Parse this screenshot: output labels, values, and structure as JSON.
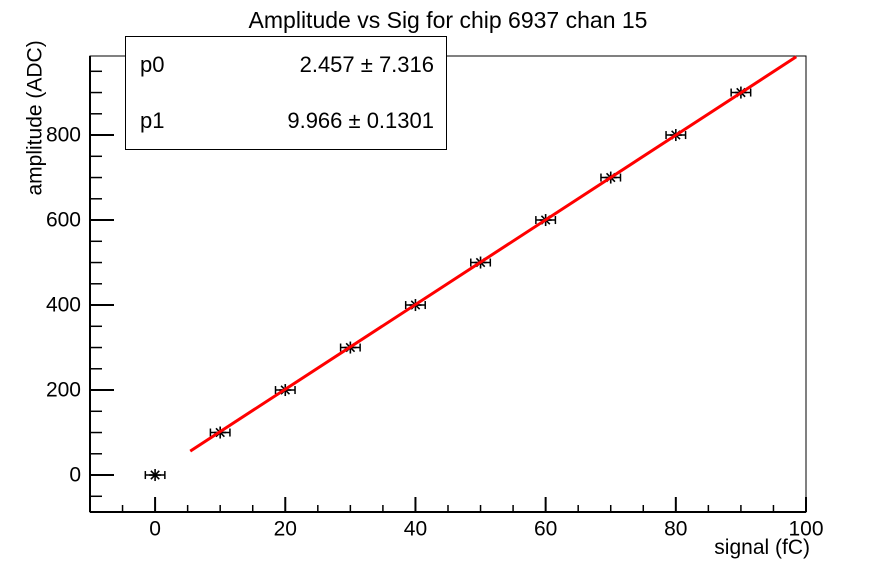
{
  "chart_data": {
    "type": "scatter",
    "title": "Amplitude vs Sig for chip 6937 chan 15",
    "xlabel": "signal (fC)",
    "ylabel": "amplitude (ADC)",
    "x": [
      0,
      10,
      20,
      30,
      40,
      50,
      60,
      70,
      80,
      90
    ],
    "y": [
      0,
      100,
      200,
      300,
      400,
      500,
      600,
      700,
      800,
      900
    ],
    "x_err": 1.5,
    "xlim": [
      -10,
      100
    ],
    "ylim": [
      -87,
      986
    ],
    "x_major_ticks": [
      0,
      20,
      40,
      60,
      80,
      100
    ],
    "x_minor_step": 5,
    "y_major_ticks": [
      0,
      200,
      400,
      600,
      800
    ],
    "y_minor_step": 50,
    "grid": false,
    "marker": "asterisk",
    "marker_color": "#000000",
    "axis_color": "#000000",
    "fit": {
      "p0": 2.457,
      "p1": 9.966,
      "x_start": 5.4,
      "x_end": 98.5,
      "color": "#ff0000"
    }
  },
  "stats": {
    "rows": [
      {
        "label": "p0",
        "value": "2.457 ± 7.316"
      },
      {
        "label": "p1",
        "value": "9.966 ± 0.1301"
      }
    ]
  }
}
